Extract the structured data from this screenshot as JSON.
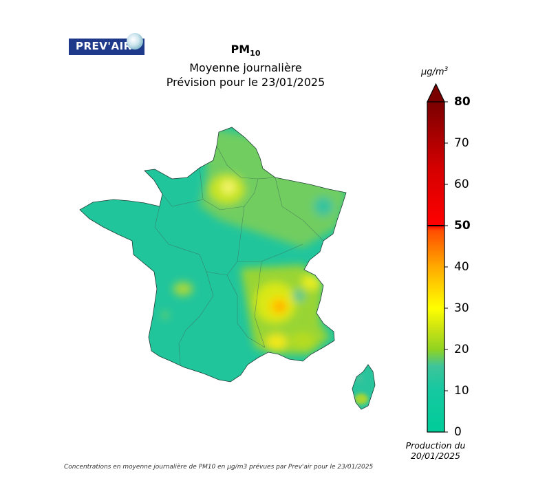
{
  "logo": {
    "text": "PREV'AIR"
  },
  "title": {
    "pollutant_main": "PM",
    "pollutant_sub": "10",
    "line2": "Moyenne journalière",
    "line3": "Prévision pour le 23/01/2025"
  },
  "colorbar": {
    "unit_main": "µg/m",
    "unit_exp": "3",
    "ticks": [
      "80",
      "70",
      "60",
      "50",
      "40",
      "30",
      "20",
      "10",
      "0"
    ],
    "colors": {
      "0": "#00cc99",
      "10": "#1ec8a0",
      "15": "#38c39b",
      "20": "#9ad520",
      "25": "#d0e614",
      "30": "#ffff00",
      "40": "#ffaa00",
      "50": "#ff3300",
      "60": "#e60000",
      "80": "#7a0000"
    }
  },
  "production": {
    "line1": "Production du",
    "line2": "20/01/2025"
  },
  "caption": "Concentrations en moyenne journalière de PM10 en µg/m3 prévues par Prev'air pour le 23/01/2025"
}
